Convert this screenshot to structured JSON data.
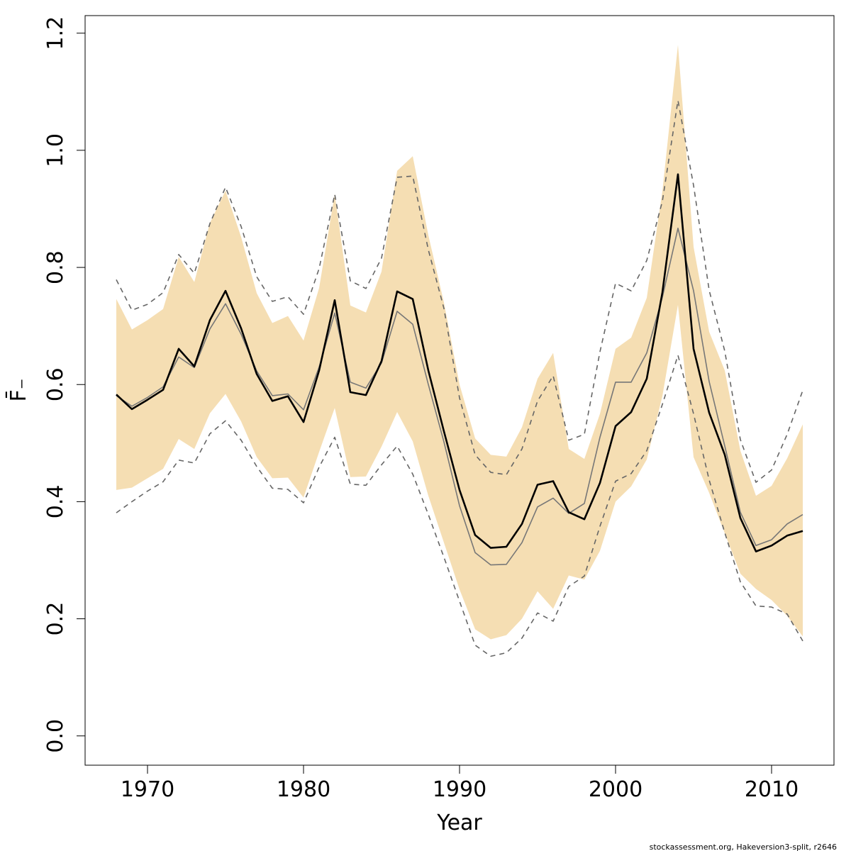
{
  "chart_data": {
    "type": "line",
    "title": "",
    "xlabel": "Year",
    "ylabel": "F̄₋",
    "xlim": [
      1966,
      2014
    ],
    "ylim": [
      -0.05,
      1.23
    ],
    "xticks": [
      1970,
      1980,
      1990,
      2000,
      2010
    ],
    "yticks": [
      0.0,
      0.2,
      0.4,
      0.6,
      0.8,
      1.0,
      1.2
    ],
    "ytick_labels": [
      "0.0",
      "0.2",
      "0.4",
      "0.6",
      "0.8",
      "1.0",
      "1.2"
    ],
    "grid": false,
    "x": [
      1968,
      1969,
      1970,
      1971,
      1972,
      1973,
      1974,
      1975,
      1976,
      1977,
      1978,
      1979,
      1980,
      1981,
      1982,
      1983,
      1984,
      1985,
      1986,
      1987,
      1988,
      1989,
      1990,
      1991,
      1992,
      1993,
      1994,
      1995,
      1996,
      1997,
      1998,
      1999,
      2000,
      2001,
      2002,
      2003,
      2004,
      2005,
      2006,
      2007,
      2008,
      2009,
      2010,
      2011,
      2012
    ],
    "series": [
      {
        "role": "band",
        "color": "#f5deb3",
        "lower": [
          0.42,
          0.424,
          0.44,
          0.456,
          0.507,
          0.49,
          0.551,
          0.584,
          0.537,
          0.476,
          0.44,
          0.441,
          0.407,
          0.485,
          0.56,
          0.442,
          0.443,
          0.494,
          0.553,
          0.503,
          0.41,
          0.33,
          0.25,
          0.182,
          0.165,
          0.172,
          0.2,
          0.247,
          0.217,
          0.274,
          0.267,
          0.316,
          0.4,
          0.426,
          0.472,
          0.58,
          0.736,
          0.476,
          0.415,
          0.346,
          0.277,
          0.251,
          0.232,
          0.205,
          0.17
        ],
        "upper": [
          0.746,
          0.694,
          0.71,
          0.729,
          0.818,
          0.775,
          0.876,
          0.931,
          0.852,
          0.756,
          0.705,
          0.717,
          0.675,
          0.765,
          0.925,
          0.735,
          0.723,
          0.793,
          0.965,
          0.99,
          0.855,
          0.74,
          0.6,
          0.508,
          0.48,
          0.477,
          0.527,
          0.61,
          0.654,
          0.49,
          0.473,
          0.55,
          0.661,
          0.68,
          0.748,
          0.93,
          1.18,
          0.835,
          0.69,
          0.624,
          0.487,
          0.41,
          0.427,
          0.474,
          0.532
        ]
      },
      {
        "role": "upper-dashed",
        "color": "#666666",
        "values": [
          0.779,
          0.727,
          0.737,
          0.757,
          0.822,
          0.79,
          0.875,
          0.937,
          0.87,
          0.784,
          0.742,
          0.75,
          0.72,
          0.798,
          0.925,
          0.777,
          0.764,
          0.816,
          0.954,
          0.956,
          0.83,
          0.73,
          0.577,
          0.48,
          0.45,
          0.446,
          0.49,
          0.572,
          0.615,
          0.505,
          0.515,
          0.656,
          0.773,
          0.76,
          0.812,
          0.913,
          1.085,
          0.94,
          0.761,
          0.657,
          0.506,
          0.433,
          0.454,
          0.515,
          0.59
        ]
      },
      {
        "role": "lower-dashed",
        "color": "#666666",
        "values": [
          0.381,
          0.4,
          0.418,
          0.434,
          0.471,
          0.466,
          0.516,
          0.538,
          0.505,
          0.46,
          0.423,
          0.421,
          0.398,
          0.459,
          0.51,
          0.43,
          0.428,
          0.463,
          0.495,
          0.447,
          0.378,
          0.305,
          0.23,
          0.155,
          0.136,
          0.142,
          0.167,
          0.21,
          0.196,
          0.255,
          0.273,
          0.358,
          0.435,
          0.448,
          0.487,
          0.566,
          0.65,
          0.55,
          0.437,
          0.347,
          0.263,
          0.222,
          0.22,
          0.208,
          0.162
        ]
      },
      {
        "role": "grey-line",
        "color": "#777777",
        "values": [
          0.581,
          0.563,
          0.578,
          0.596,
          0.647,
          0.629,
          0.695,
          0.738,
          0.686,
          0.623,
          0.581,
          0.584,
          0.557,
          0.63,
          0.722,
          0.604,
          0.594,
          0.637,
          0.725,
          0.703,
          0.6,
          0.502,
          0.393,
          0.313,
          0.292,
          0.293,
          0.33,
          0.391,
          0.406,
          0.38,
          0.397,
          0.51,
          0.604,
          0.604,
          0.654,
          0.749,
          0.867,
          0.76,
          0.605,
          0.495,
          0.382,
          0.325,
          0.335,
          0.362,
          0.378
        ]
      },
      {
        "role": "main-line",
        "color": "#000000",
        "values": [
          0.583,
          0.558,
          0.574,
          0.591,
          0.661,
          0.631,
          0.71,
          0.76,
          0.696,
          0.618,
          0.572,
          0.58,
          0.536,
          0.624,
          0.744,
          0.587,
          0.582,
          0.64,
          0.759,
          0.746,
          0.624,
          0.52,
          0.42,
          0.343,
          0.321,
          0.323,
          0.362,
          0.429,
          0.435,
          0.382,
          0.37,
          0.432,
          0.529,
          0.553,
          0.61,
          0.757,
          0.959,
          0.661,
          0.552,
          0.48,
          0.372,
          0.315,
          0.325,
          0.342,
          0.35
        ]
      }
    ]
  },
  "footer_text": "stockassessment.org, Hakeversion3-split, r2646"
}
